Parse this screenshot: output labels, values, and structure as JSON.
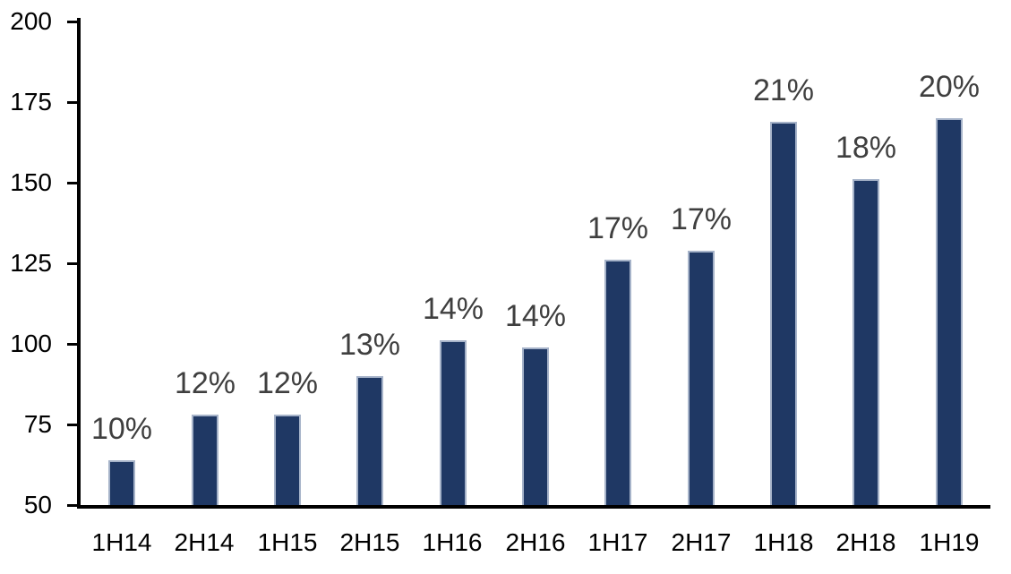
{
  "chart_data": {
    "type": "bar",
    "categories": [
      "1H14",
      "2H14",
      "1H15",
      "2H15",
      "1H16",
      "2H16",
      "1H17",
      "2H17",
      "1H18",
      "2H18",
      "1H19"
    ],
    "values": [
      64,
      78,
      78,
      90,
      101,
      99,
      126,
      129,
      169,
      151,
      170
    ],
    "data_labels": [
      "10%",
      "12%",
      "12%",
      "13%",
      "14%",
      "14%",
      "17%",
      "17%",
      "21%",
      "18%",
      "20%"
    ],
    "title": "",
    "xlabel": "",
    "ylabel": "",
    "ylim": [
      50,
      200
    ],
    "yticks": [
      50,
      75,
      100,
      125,
      150,
      175,
      200
    ],
    "ytick_interval": 25,
    "grid": false,
    "legend": "none",
    "bar_border": true,
    "colors": {
      "bar_fill": "#1F3864",
      "bar_border": "#A6B3C9",
      "axis": "#000000",
      "tick_label": "#000000",
      "data_label": "#3F3F3F",
      "background": "#FFFFFF"
    }
  }
}
